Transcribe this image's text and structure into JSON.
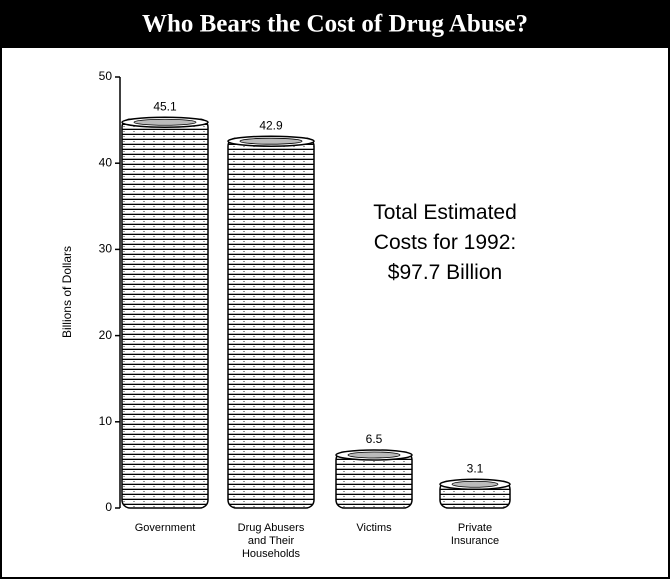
{
  "chart_data": {
    "type": "bar",
    "title": "Who Bears the Cost of Drug Abuse?",
    "y_label": "Billions of Dollars",
    "annotation": "Total Estimated Costs for 1992: $97.7 Billion",
    "categories": [
      "Government",
      "Drug Abusers and Their Households",
      "Victims",
      "Private Insurance"
    ],
    "values": [
      45.1,
      42.9,
      6.5,
      3.1
    ],
    "color": "#000000",
    "ylim": [
      0,
      50
    ],
    "yticks": [
      0,
      10,
      20,
      30,
      40,
      50
    ]
  }
}
